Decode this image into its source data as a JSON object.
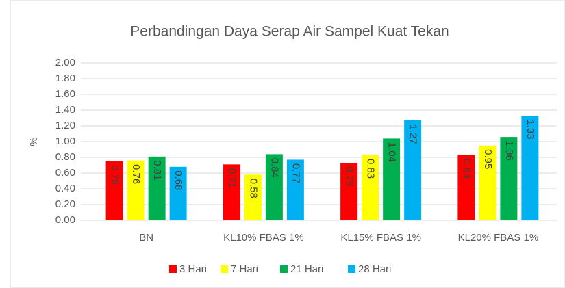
{
  "chart_data": {
    "type": "bar",
    "title": "Perbandingan Daya Serap Air Sampel Kuat Tekan",
    "ylabel": "%",
    "categories": [
      "BN",
      "KL10% FBAS 1%",
      "KL15% FBAS 1%",
      "KL20% FBAS 1%"
    ],
    "series": [
      {
        "name": "3 Hari",
        "color": "#ff0000",
        "values": [
          0.75,
          0.71,
          0.73,
          0.83
        ]
      },
      {
        "name": "7 Hari",
        "color": "#ffff00",
        "values": [
          0.76,
          0.58,
          0.83,
          0.95
        ]
      },
      {
        "name": "21 Hari",
        "color": "#00b050",
        "values": [
          0.81,
          0.84,
          1.04,
          1.06
        ]
      },
      {
        "name": "28 Hari",
        "color": "#00b0f0",
        "values": [
          0.68,
          0.77,
          1.27,
          1.33
        ]
      }
    ],
    "ylim": [
      0,
      2
    ],
    "yticks": [
      {
        "value": 0,
        "label": "0.00"
      },
      {
        "value": 0.2,
        "label": "0.20"
      },
      {
        "value": 0.4,
        "label": "0.40"
      },
      {
        "value": 0.6,
        "label": "0.60"
      },
      {
        "value": 0.8,
        "label": "0.80"
      },
      {
        "value": 1,
        "label": "1.00"
      },
      {
        "value": 1.2,
        "label": "1.20"
      },
      {
        "value": 1.4,
        "label": "1.40"
      },
      {
        "value": 1.6,
        "label": "1.60"
      },
      {
        "value": 1.8,
        "label": "1.80"
      },
      {
        "value": 2,
        "label": "2.00"
      }
    ],
    "legend": "bottom"
  }
}
